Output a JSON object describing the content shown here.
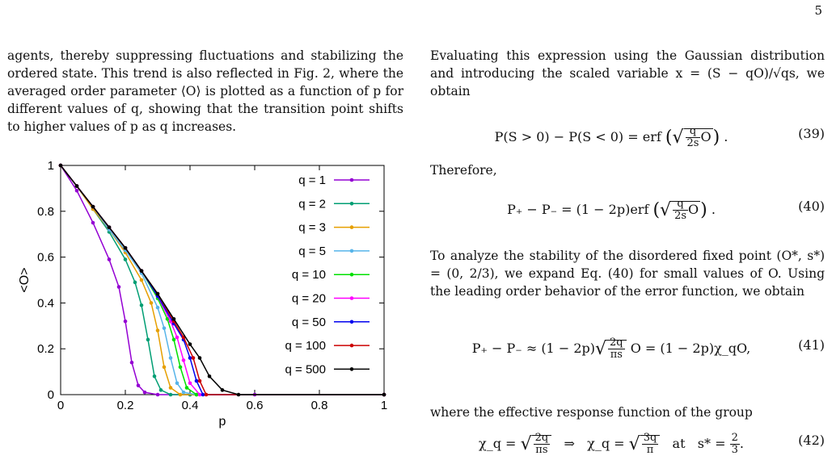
{
  "page_number": "5",
  "left_text": "agents, thereby suppressing fluctuations and stabilizing the ordered state. This trend is also reflected in Fig. 2, where the averaged order parameter ⟨O⟩ is plotted as a function of p for different values of q, showing that the transition point shifts to higher values of p as q increases.",
  "right_intro": "Evaluating this expression using the Gaussian distribution and introducing the scaled variable x = (S − qO)/√qs, we obtain",
  "eq39": {
    "lhs": "P(S > 0) − P(S < 0) = erf",
    "num": "(39)"
  },
  "therefore": "Therefore,",
  "eq40": {
    "lhs": "P₊ − P₋ = (1 − 2p)erf",
    "num": "(40)"
  },
  "analyze_text": "To analyze the stability of the disordered fixed point (O*, s*) = (0, 2/3), we expand Eq. (40) for small values of O. Using the leading order behavior of the error function, we obtain",
  "eq41": {
    "lhs": "P₊ − P₋ ≈ (1 − 2p)",
    "rhs": "O = (1 − 2p)χ_qO,",
    "num": "(41)"
  },
  "effective_text": "where the effective response function of the group",
  "eq42": {
    "a": "χ_q =",
    "arrow": "⇒",
    "b": "χ_q =",
    "at": "at",
    "s": "s* =",
    "num": "(42)"
  },
  "chart_data": {
    "type": "line",
    "xlabel": "p",
    "ylabel": "<O>",
    "xlim": [
      0,
      1
    ],
    "ylim": [
      0,
      1
    ],
    "xticks": [
      "0",
      "0.2",
      "0.4",
      "0.6",
      "0.8",
      "1"
    ],
    "yticks": [
      "0",
      "0.2",
      "0.4",
      "0.6",
      "0.8",
      "1"
    ],
    "legend_position": "top-right",
    "series": [
      {
        "name": "q = 1",
        "color": "#9400d3",
        "x": [
          0,
          0.05,
          0.1,
          0.15,
          0.18,
          0.2,
          0.22,
          0.24,
          0.26,
          0.3,
          0.4,
          0.6,
          1.0
        ],
        "y": [
          1.0,
          0.89,
          0.75,
          0.59,
          0.47,
          0.32,
          0.14,
          0.04,
          0.01,
          0.0,
          0.0,
          0.0,
          0.0
        ]
      },
      {
        "name": "q = 2",
        "color": "#009e73",
        "x": [
          0,
          0.05,
          0.1,
          0.15,
          0.2,
          0.23,
          0.25,
          0.27,
          0.29,
          0.31,
          0.34,
          0.4,
          1.0
        ],
        "y": [
          1.0,
          0.91,
          0.81,
          0.71,
          0.59,
          0.49,
          0.39,
          0.24,
          0.08,
          0.02,
          0.0,
          0.0,
          0.0
        ]
      },
      {
        "name": "q = 3",
        "color": "#e69f00",
        "x": [
          0,
          0.05,
          0.1,
          0.15,
          0.2,
          0.25,
          0.28,
          0.3,
          0.32,
          0.34,
          0.37,
          0.42,
          1.0
        ],
        "y": [
          1.0,
          0.91,
          0.81,
          0.72,
          0.62,
          0.5,
          0.4,
          0.28,
          0.12,
          0.03,
          0.0,
          0.0,
          0.0
        ]
      },
      {
        "name": "q = 5",
        "color": "#56b4e9",
        "x": [
          0,
          0.05,
          0.1,
          0.15,
          0.2,
          0.25,
          0.3,
          0.32,
          0.34,
          0.36,
          0.38,
          0.42,
          1.0
        ],
        "y": [
          1.0,
          0.91,
          0.82,
          0.72,
          0.63,
          0.53,
          0.38,
          0.29,
          0.16,
          0.05,
          0.01,
          0.0,
          0.0
        ]
      },
      {
        "name": "q = 10",
        "color": "#00e000",
        "x": [
          0,
          0.05,
          0.1,
          0.15,
          0.2,
          0.25,
          0.3,
          0.33,
          0.35,
          0.37,
          0.39,
          0.42,
          1.0
        ],
        "y": [
          1.0,
          0.91,
          0.82,
          0.73,
          0.64,
          0.54,
          0.42,
          0.33,
          0.24,
          0.12,
          0.03,
          0.0,
          0.0
        ]
      },
      {
        "name": "q = 20",
        "color": "#ff00ff",
        "x": [
          0,
          0.05,
          0.1,
          0.15,
          0.2,
          0.25,
          0.3,
          0.34,
          0.36,
          0.38,
          0.4,
          0.43,
          1.0
        ],
        "y": [
          1.0,
          0.91,
          0.82,
          0.73,
          0.64,
          0.54,
          0.43,
          0.32,
          0.25,
          0.15,
          0.05,
          0.0,
          0.0
        ]
      },
      {
        "name": "q = 50",
        "color": "#0000ee",
        "x": [
          0,
          0.05,
          0.1,
          0.15,
          0.2,
          0.25,
          0.3,
          0.35,
          0.38,
          0.4,
          0.42,
          0.44,
          1.0
        ],
        "y": [
          1.0,
          0.91,
          0.82,
          0.73,
          0.64,
          0.54,
          0.43,
          0.31,
          0.24,
          0.16,
          0.06,
          0.0,
          0.0
        ]
      },
      {
        "name": "q = 100",
        "color": "#cc0000",
        "x": [
          0,
          0.05,
          0.1,
          0.15,
          0.2,
          0.25,
          0.3,
          0.35,
          0.38,
          0.41,
          0.43,
          0.45,
          1.0
        ],
        "y": [
          1.0,
          0.91,
          0.82,
          0.73,
          0.64,
          0.54,
          0.44,
          0.32,
          0.25,
          0.16,
          0.06,
          0.0,
          0.0
        ]
      },
      {
        "name": "q = 500",
        "color": "#000000",
        "x": [
          0,
          0.05,
          0.1,
          0.15,
          0.2,
          0.25,
          0.3,
          0.35,
          0.4,
          0.43,
          0.46,
          0.5,
          0.55,
          1.0
        ],
        "y": [
          1.0,
          0.91,
          0.82,
          0.73,
          0.64,
          0.54,
          0.44,
          0.33,
          0.22,
          0.16,
          0.08,
          0.02,
          0.0,
          0.0
        ]
      }
    ]
  }
}
